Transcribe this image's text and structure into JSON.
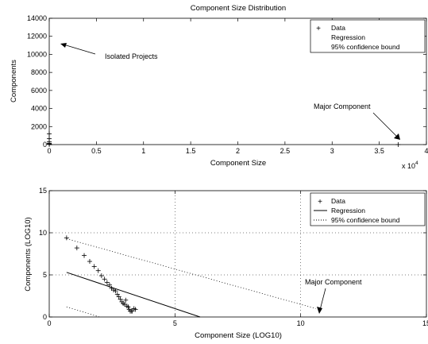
{
  "chart_data": [
    {
      "type": "scatter",
      "title": "Component Size Distribution",
      "xlabel": "Component Size",
      "ylabel": "Components",
      "x_multiplier_label": "x 10",
      "x_multiplier_exp": "4",
      "xlim": [
        0,
        4
      ],
      "ylim": [
        0,
        14000
      ],
      "xticks": [
        "0",
        "0.5",
        "1",
        "1.5",
        "2",
        "2.5",
        "3",
        "3.5",
        "4"
      ],
      "xtick_values": [
        0,
        0.5,
        1,
        1.5,
        2,
        2.5,
        3,
        3.5,
        4
      ],
      "yticks": [
        "0",
        "2000",
        "4000",
        "6000",
        "8000",
        "10000",
        "12000",
        "14000"
      ],
      "ytick_values": [
        0,
        2000,
        4000,
        6000,
        8000,
        10000,
        12000,
        14000
      ],
      "grid": false,
      "legend_position": "top-right",
      "legend": [
        "Data",
        "Regression",
        "95% confidence bound"
      ],
      "series": [
        {
          "name": "Data",
          "marker": "+",
          "x": [
            0.0001,
            0.0002,
            0.0003,
            0.0004,
            0.0005,
            0.0007,
            0.001,
            3.7
          ],
          "y": [
            1200,
            650,
            300,
            150,
            80,
            40,
            20,
            1
          ]
        }
      ],
      "annotations": [
        {
          "text": "Isolated Projects",
          "arrow_to": [
            0.1,
            11000
          ]
        },
        {
          "text": "Major Component",
          "arrow_to": [
            3.7,
            0
          ]
        }
      ]
    },
    {
      "type": "scatter",
      "title": "",
      "xlabel": "Component Size (LOG10)",
      "ylabel": "Components (LOG10)",
      "xlim": [
        0,
        15
      ],
      "ylim": [
        0,
        15
      ],
      "xticks": [
        "0",
        "5",
        "10",
        "15"
      ],
      "xtick_values": [
        0,
        5,
        10,
        15
      ],
      "yticks": [
        "0",
        "5",
        "10",
        "15"
      ],
      "ytick_values": [
        0,
        5,
        10,
        15
      ],
      "grid": true,
      "legend_position": "top-right",
      "legend": [
        "Data",
        "Regression",
        "95% confidence bound"
      ],
      "series": [
        {
          "name": "Data",
          "marker": "+",
          "x": [
            0.69,
            1.1,
            1.39,
            1.61,
            1.79,
            1.95,
            2.08,
            2.2,
            2.3,
            2.4,
            2.48,
            2.56,
            2.64,
            2.71,
            2.77,
            2.83,
            2.89,
            2.94,
            3.0,
            3.04,
            3.09,
            3.14,
            3.18,
            3.22,
            3.26,
            3.3,
            3.37,
            3.43
          ],
          "y": [
            9.4,
            8.2,
            7.3,
            6.6,
            6.0,
            5.5,
            4.9,
            4.5,
            4.1,
            3.8,
            3.4,
            3.2,
            3.1,
            2.7,
            2.4,
            2.1,
            1.8,
            1.6,
            1.5,
            2.0,
            1.3,
            1.2,
            0.9,
            0.7,
            0.7,
            0.7,
            1.0,
            0.9
          ]
        },
        {
          "name": "Regression",
          "style": "solid",
          "x": [
            0.69,
            6.0
          ],
          "y": [
            5.3,
            0
          ]
        },
        {
          "name": "95% confidence bound",
          "style": "dotted",
          "x": [
            0.69,
            10.6
          ],
          "y": [
            9.3,
            1.0
          ]
        },
        {
          "name": "95% confidence bound lower",
          "style": "dotted",
          "x": [
            0.69,
            2.0
          ],
          "y": [
            1.2,
            0
          ]
        }
      ],
      "annotations": [
        {
          "text": "Major Component",
          "arrow_to": [
            10.6,
            0.2
          ]
        }
      ]
    }
  ]
}
